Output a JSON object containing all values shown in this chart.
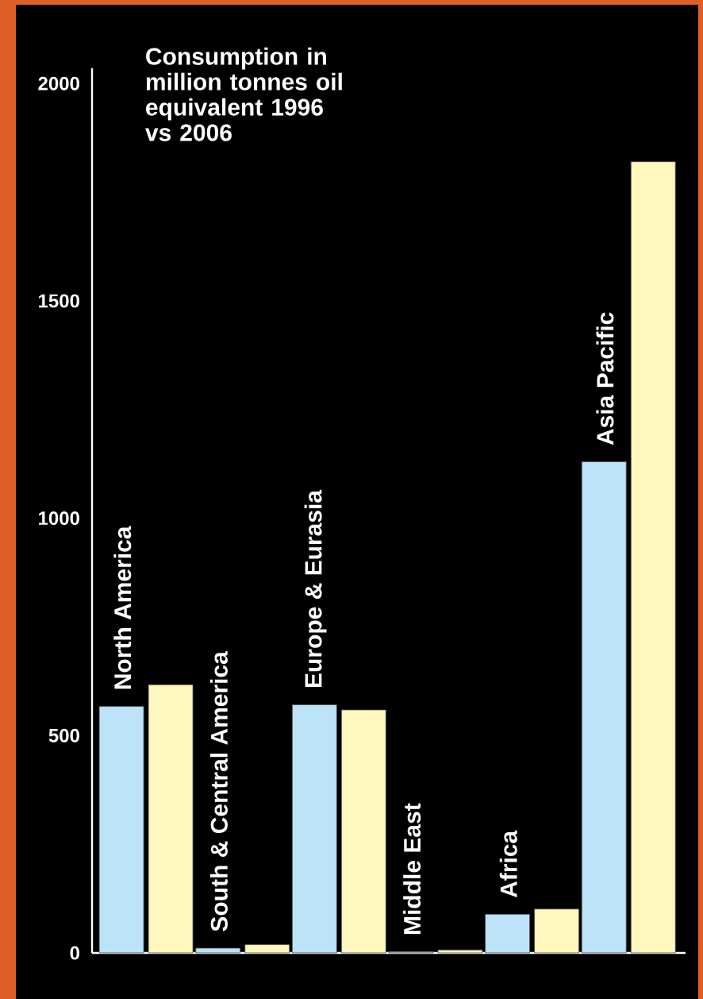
{
  "chart_data": {
    "type": "bar",
    "title": "Consumption in million tonnes oil equivalent 1996 vs 2006",
    "categories": [
      "North America",
      "South & Central America",
      "Europe & Eurasia",
      "Middle East",
      "Africa",
      "Asia Pacific"
    ],
    "series": [
      {
        "color": "#bde3f8",
        "values": [
          567,
          11,
          571,
          3,
          89,
          1130
        ]
      },
      {
        "color": "#fff8be",
        "values": [
          617,
          19,
          559,
          7,
          101,
          1820
        ]
      }
    ],
    "ylim": [
      0,
      2035
    ],
    "yticks": [
      0,
      500,
      1000,
      1500,
      2000
    ]
  }
}
